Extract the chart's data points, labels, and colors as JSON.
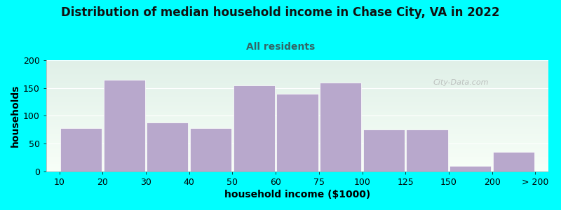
{
  "title": "Distribution of median household income in Chase City, VA in 2022",
  "subtitle": "All residents",
  "xlabel": "household income ($1000)",
  "ylabel": "households",
  "background_color": "#00FFFF",
  "bar_color": "#b8a8cc",
  "values": [
    78,
    165,
    88,
    78,
    155,
    140,
    160,
    75,
    75,
    10,
    35
  ],
  "tick_labels": [
    "10",
    "20",
    "30",
    "40",
    "50",
    "60",
    "75",
    "100",
    "125",
    "150",
    "200",
    "> 200"
  ],
  "ylim": [
    0,
    200
  ],
  "yticks": [
    0,
    50,
    100,
    150,
    200
  ],
  "title_fontsize": 12,
  "subtitle_fontsize": 10,
  "axis_label_fontsize": 10,
  "tick_fontsize": 9,
  "watermark": "City-Data.com",
  "gradient_top": "#e0f0e8",
  "gradient_bottom": "#f8fff8"
}
